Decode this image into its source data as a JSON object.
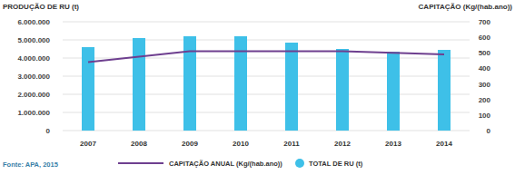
{
  "chart_data": {
    "type": "bar",
    "y_label": "PRODUÇÃO DE RU (t)",
    "y2_label": "CAPITAÇÃO (Kg/(hab.ano))",
    "source": "Fonte: APA, 2015",
    "categories": [
      "2007",
      "2008",
      "2009",
      "2010",
      "2011",
      "2012",
      "2013",
      "2014"
    ],
    "series": [
      {
        "name": "CAPITAÇÃO ANUAL (Kg/(hab.ano))",
        "type": "line",
        "axis": "y2",
        "color": "#6e3f8f",
        "values": [
          440,
          475,
          510,
          510,
          510,
          510,
          500,
          490
        ]
      },
      {
        "name": "TOTAL DE RU (t)",
        "type": "bar",
        "color": "#3ec0e8",
        "values": [
          4600000,
          5100000,
          5200000,
          5200000,
          4850000,
          4500000,
          4350000,
          4450000
        ]
      }
    ],
    "ylim": [
      0,
      6000000
    ],
    "yticks": [
      0,
      {
        "value": 1000000,
        "label": "1.000.000"
      },
      {
        "value": 2000000,
        "label": "2.000.000"
      },
      {
        "value": 3000000,
        "label": "3.000.000"
      },
      {
        "value": 4000000,
        "label": "4.000.000"
      },
      {
        "value": 5000000,
        "label": "5.000.000"
      },
      {
        "value": 6000000,
        "label": "6.000.000"
      }
    ],
    "y2lim": [
      0,
      700
    ],
    "y2ticks": [
      0,
      100,
      200,
      300,
      400,
      500,
      600,
      700
    ],
    "grid": true
  }
}
